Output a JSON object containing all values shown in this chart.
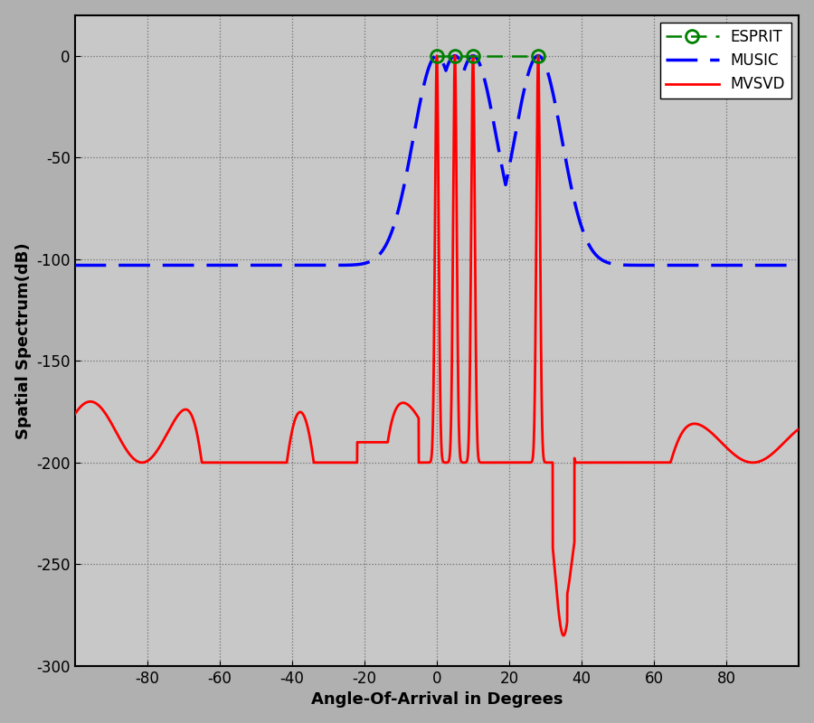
{
  "xlabel": "Angle-Of-Arrival in Degrees",
  "ylabel": "Spatial Spectrum(dB)",
  "xlim": [
    -100,
    100
  ],
  "ylim": [
    -300,
    20
  ],
  "yticks": [
    0,
    -50,
    -100,
    -150,
    -200,
    -250,
    -300
  ],
  "xticks": [
    -80,
    -60,
    -40,
    -20,
    0,
    20,
    40,
    60,
    80
  ],
  "fig_background": "#b0b0b0",
  "plot_background": "#c8c8c8",
  "esprit_angles": [
    0,
    5,
    10,
    28
  ],
  "esprit_color": "#008000",
  "music_color": "#0000ff",
  "mvsvd_color": "#ff0000",
  "legend_labels": [
    "ESPRIT",
    "MUSIC",
    "MVSVD"
  ],
  "music_baseline": -103,
  "music_peak_sigma": 6.5,
  "mvsvd_baseline": -200
}
